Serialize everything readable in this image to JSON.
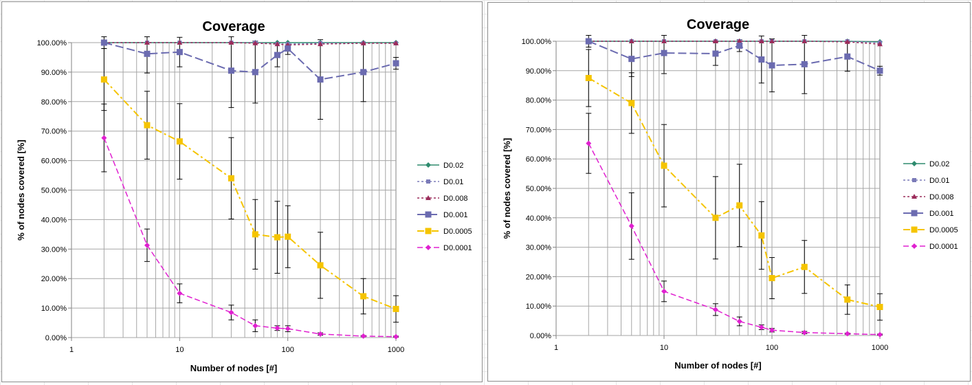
{
  "chart_data": [
    {
      "type": "line",
      "title": "Coverage",
      "xlabel": "Number of nodes [#]",
      "ylabel": "% of nodes covered [%]",
      "xscale": "log",
      "xlim": [
        1,
        1000
      ],
      "ylim": [
        0,
        1
      ],
      "x_ticks": [
        "1",
        "10",
        "100",
        "1000"
      ],
      "y_ticks": [
        "0.00%",
        "10.00%",
        "20.00%",
        "30.00%",
        "40.00%",
        "50.00%",
        "60.00%",
        "70.00%",
        "80.00%",
        "90.00%",
        "100.00%"
      ],
      "grid": true,
      "legend_position": "right",
      "x": [
        2,
        5,
        10,
        30,
        50,
        80,
        100,
        200,
        500,
        1000
      ],
      "series": [
        {
          "name": "D0.02",
          "color": "#2e8b6e",
          "dash": "solid",
          "marker": "diamond",
          "values": [
            1.0,
            1.0,
            1.0,
            1.0,
            1.0,
            1.0,
            1.0,
            1.0,
            1.0,
            1.0
          ]
        },
        {
          "name": "D0.01",
          "color": "#7b7bb8",
          "dash": "dotted",
          "marker": "square-small",
          "values": [
            1.0,
            1.0,
            1.0,
            1.0,
            1.0,
            0.995,
            0.995,
            0.998,
            0.998,
            0.998
          ]
        },
        {
          "name": "D0.008",
          "color": "#9b2c5a",
          "dash": "dotted",
          "marker": "triangle",
          "values": [
            1.0,
            1.0,
            1.0,
            1.0,
            0.998,
            0.995,
            0.992,
            0.995,
            0.998,
            0.998
          ]
        },
        {
          "name": "D0.001",
          "color": "#6b6bb0",
          "dash": "longdash",
          "marker": "square",
          "values": [
            1.0,
            0.962,
            0.968,
            0.905,
            0.9,
            0.958,
            0.98,
            0.875,
            0.9,
            0.93
          ],
          "errors": [
            0.02,
            0.065,
            0.05,
            0.125,
            0.105,
            0.04,
            0.02,
            0.135,
            0.1,
            0.02
          ]
        },
        {
          "name": "D0.0005",
          "color": "#f5c400",
          "dash": "dashdot",
          "marker": "square",
          "values": [
            0.875,
            0.72,
            0.665,
            0.54,
            0.35,
            0.34,
            0.342,
            0.245,
            0.14,
            0.097
          ],
          "errors": [
            0.105,
            0.115,
            0.128,
            0.138,
            0.118,
            0.122,
            0.105,
            0.112,
            0.06,
            0.045
          ]
        },
        {
          "name": "D0.0001",
          "color": "#e020d0",
          "dash": "dashed",
          "marker": "diamond",
          "values": [
            0.677,
            0.313,
            0.15,
            0.085,
            0.04,
            0.032,
            0.03,
            0.012,
            0.005,
            0.003
          ],
          "errors": [
            0.115,
            0.055,
            0.032,
            0.025,
            0.02,
            0.008,
            0.01,
            0.004,
            0.002,
            0.002
          ]
        }
      ]
    },
    {
      "type": "line",
      "title": "Coverage",
      "xlabel": "Number of nodes [#]",
      "ylabel": "% of nodes covered [%]",
      "xscale": "log",
      "xlim": [
        1,
        1000
      ],
      "ylim": [
        0,
        1
      ],
      "x_ticks": [
        "1",
        "10",
        "100",
        "1000"
      ],
      "y_ticks": [
        "0.00%",
        "10.00%",
        "20.00%",
        "30.00%",
        "40.00%",
        "50.00%",
        "60.00%",
        "70.00%",
        "80.00%",
        "90.00%",
        "100.00%"
      ],
      "grid": true,
      "legend_position": "right",
      "x": [
        2,
        5,
        10,
        30,
        50,
        80,
        100,
        200,
        500,
        1000
      ],
      "series": [
        {
          "name": "D0.02",
          "color": "#2e8b6e",
          "dash": "solid",
          "marker": "diamond",
          "values": [
            1.0,
            1.0,
            1.0,
            1.0,
            1.0,
            1.0,
            1.0,
            1.0,
            1.0,
            0.998
          ]
        },
        {
          "name": "D0.01",
          "color": "#7b7bb8",
          "dash": "dotted",
          "marker": "square-small",
          "values": [
            1.0,
            1.0,
            1.0,
            1.0,
            1.0,
            1.0,
            1.0,
            1.0,
            1.0,
            0.995
          ]
        },
        {
          "name": "D0.008",
          "color": "#9b2c5a",
          "dash": "dotted",
          "marker": "triangle",
          "values": [
            1.0,
            1.0,
            1.0,
            1.0,
            1.0,
            1.0,
            1.0,
            1.0,
            0.998,
            0.99
          ]
        },
        {
          "name": "D0.001",
          "color": "#6b6bb0",
          "dash": "longdash",
          "marker": "square",
          "values": [
            1.0,
            0.94,
            0.96,
            0.958,
            0.985,
            0.938,
            0.918,
            0.922,
            0.948,
            0.9
          ],
          "errors": [
            0.02,
            0.06,
            0.07,
            0.04,
            0.02,
            0.08,
            0.09,
            0.1,
            0.05,
            0.015
          ]
        },
        {
          "name": "D0.0005",
          "color": "#f5c400",
          "dash": "dashdot",
          "marker": "square",
          "values": [
            0.875,
            0.79,
            0.577,
            0.4,
            0.442,
            0.34,
            0.195,
            0.233,
            0.122,
            0.097
          ],
          "errors": [
            0.097,
            0.103,
            0.14,
            0.14,
            0.14,
            0.115,
            0.07,
            0.09,
            0.05,
            0.045
          ]
        },
        {
          "name": "D0.0001",
          "color": "#e020d0",
          "dash": "dashed",
          "marker": "diamond",
          "values": [
            0.653,
            0.372,
            0.15,
            0.088,
            0.048,
            0.028,
            0.018,
            0.01,
            0.006,
            0.003
          ],
          "errors": [
            0.102,
            0.113,
            0.035,
            0.02,
            0.015,
            0.008,
            0.006,
            0.004,
            0.002,
            0.002
          ]
        }
      ]
    }
  ]
}
